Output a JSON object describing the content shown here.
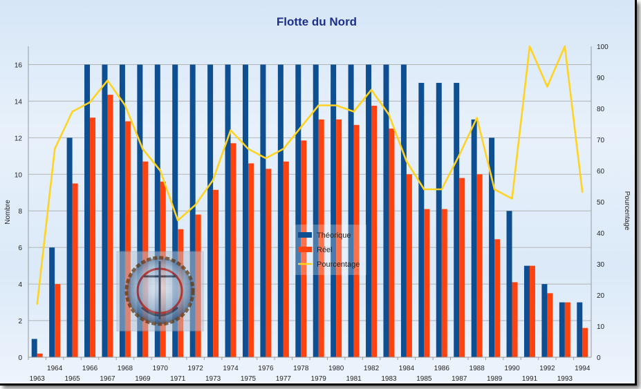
{
  "chart_data": {
    "type": "bar",
    "title": "Flotte du Nord",
    "ylabel": "Nombre",
    "y2label": "Pourcentage",
    "ylim": [
      0,
      17
    ],
    "y2lim": [
      0,
      100
    ],
    "yticks": [
      0,
      2,
      4,
      6,
      8,
      10,
      12,
      14,
      16
    ],
    "y2ticks": [
      0,
      10,
      20,
      30,
      40,
      50,
      60,
      70,
      80,
      90,
      100
    ],
    "grid": true,
    "legend_position": "center",
    "categories": [
      "1963",
      "1964",
      "1965",
      "1966",
      "1967",
      "1968",
      "1969",
      "1970",
      "1971",
      "1972",
      "1973",
      "1974",
      "1975",
      "1976",
      "1977",
      "1978",
      "1979",
      "1980",
      "1981",
      "1982",
      "1983",
      "1984",
      "1985",
      "1986",
      "1987",
      "1988",
      "1989",
      "1990",
      "1991",
      "1992",
      "1993",
      "1994"
    ],
    "series": [
      {
        "name": "Théorique",
        "type": "bar",
        "axis": "left",
        "color": "#0e4f92",
        "values": [
          1,
          6,
          12,
          16,
          16,
          16,
          16,
          16,
          16,
          16,
          16,
          16,
          16,
          16,
          16,
          16,
          16,
          16,
          16,
          16,
          16,
          16,
          15,
          15,
          15,
          13,
          12,
          8,
          5,
          4,
          3,
          3
        ]
      },
      {
        "name": "Réel",
        "type": "bar",
        "axis": "left",
        "color": "#ff420e",
        "values": [
          0.2,
          4,
          9.5,
          13.1,
          14.35,
          12.9,
          10.7,
          9.6,
          7,
          7.8,
          9.15,
          11.7,
          10.6,
          10.3,
          10.7,
          11.85,
          13,
          13,
          12.7,
          13.75,
          12.5,
          10,
          8.1,
          8.1,
          9.8,
          10,
          6.45,
          4.1,
          5,
          3.5,
          3,
          1.6
        ]
      },
      {
        "name": "Pourcentage",
        "type": "line",
        "axis": "right",
        "color": "#ffd320",
        "values": [
          17,
          67,
          79,
          82,
          89,
          81,
          67,
          60,
          44,
          49,
          57,
          73,
          67,
          64,
          67,
          74,
          81,
          81,
          79,
          86,
          78,
          63,
          54,
          54,
          65,
          77,
          54,
          51,
          100,
          87,
          100,
          53
        ]
      }
    ]
  }
}
